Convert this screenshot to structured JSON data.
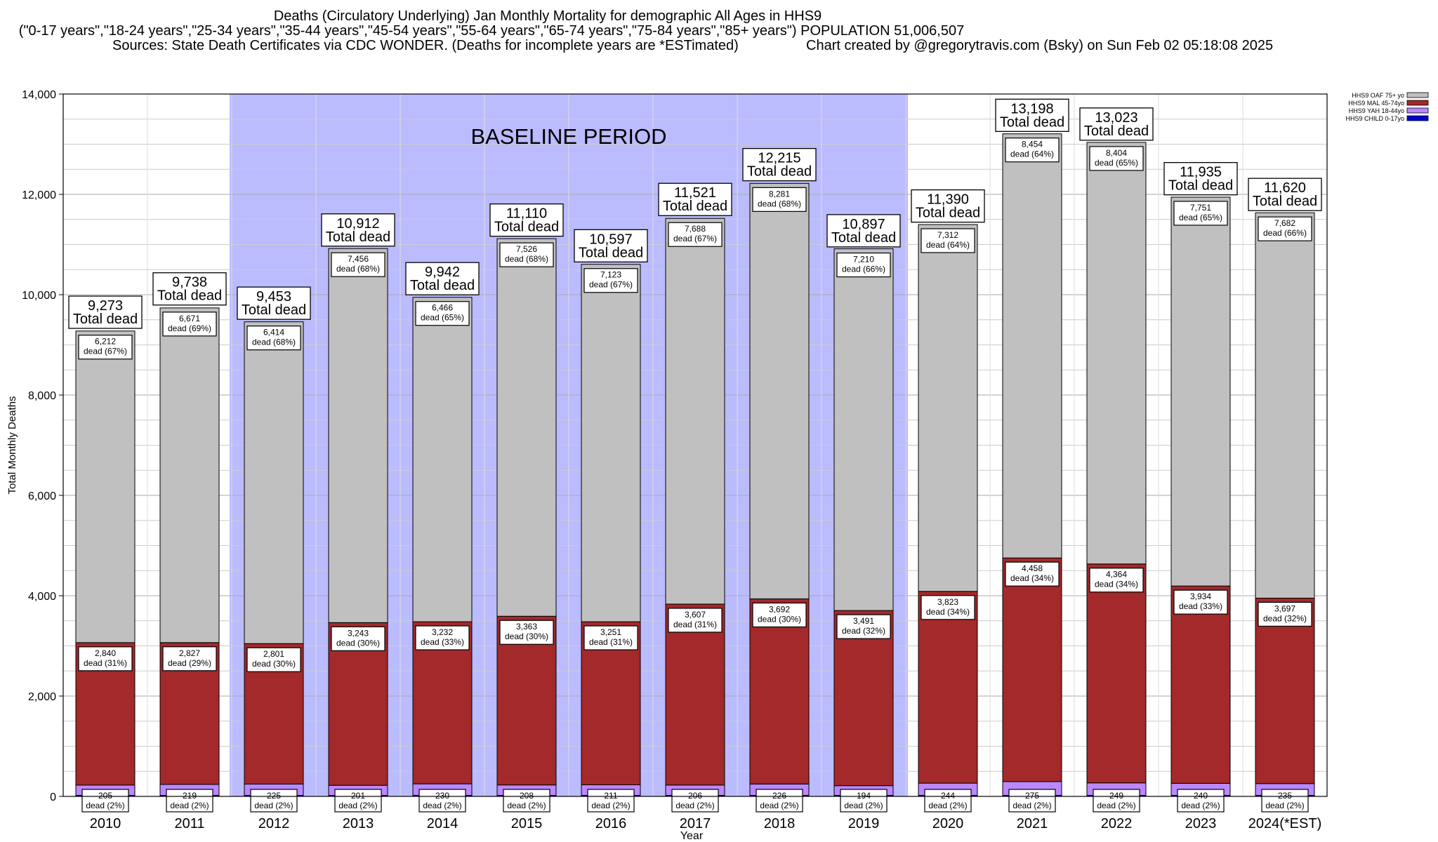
{
  "header": {
    "title_line1": "Deaths (Circulatory Underlying) Jan Monthly Mortality for demographic All Ages in HHS9",
    "title_line2": "(\"0-17 years\",\"18-24 years\",\"25-34 years\",\"35-44 years\",\"45-54 years\",\"55-64 years\",\"65-74 years\",\"75-84 years\",\"85+ years\") POPULATION 51,006,507",
    "sources": "Sources: State Death Certificates via CDC WONDER. (Deaths for incomplete years are *ESTimated)",
    "credit": "Chart created by @gregorytravis.com (Bsky) on Sun Feb 02 05:18:08 2025"
  },
  "colors": {
    "oaf": "#c0c0c0",
    "mal": "#a3292b",
    "yah": "#bb88ff",
    "child": "#0000cc",
    "baseline": "#bbbbff",
    "grid": "#cccccc"
  },
  "chart_data": {
    "type": "bar",
    "stacked": true,
    "xlabel": "Year",
    "ylabel": "Total Monthly Deaths",
    "ylim": [
      0,
      14000
    ],
    "yticks": [
      0,
      2000,
      4000,
      6000,
      8000,
      10000,
      12000,
      14000
    ],
    "ytick_labels": [
      "0",
      "2,000",
      "4,000",
      "6,000",
      "8,000",
      "10,000",
      "12,000",
      "14,000"
    ],
    "categories": [
      "2010",
      "2011",
      "2012",
      "2013",
      "2014",
      "2015",
      "2016",
      "2017",
      "2018",
      "2019",
      "2020",
      "2021",
      "2022",
      "2023",
      "2024(*EST)"
    ],
    "baseline_label": "BASELINE PERIOD",
    "baseline_range": [
      "2012",
      "2019"
    ],
    "total_label_suffix": "Total dead",
    "segment_label_word": "dead",
    "totals": [
      9273,
      9738,
      9453,
      10912,
      9942,
      11110,
      10597,
      11521,
      12215,
      10897,
      11390,
      13198,
      13023,
      11935,
      11620
    ],
    "totals_display": [
      "9,273",
      "9,738",
      "9,453",
      "10,912",
      "9,942",
      "11,110",
      "10,597",
      "11,521",
      "12,215",
      "10,897",
      "11,390",
      "13,198",
      "13,023",
      "11,935",
      "11,620"
    ],
    "series": [
      {
        "name": "HHS9 CHILD 0-17yo",
        "key": "child",
        "values": [
          20,
          20,
          20,
          20,
          20,
          20,
          20,
          20,
          20,
          20,
          20,
          20,
          20,
          20,
          20
        ]
      },
      {
        "name": "HHS9 YAH 18-44yo",
        "key": "yah",
        "values": [
          205,
          219,
          225,
          201,
          230,
          208,
          211,
          206,
          226,
          194,
          244,
          275,
          249,
          240,
          235
        ],
        "labels": [
          "205",
          "219",
          "225",
          "201",
          "230",
          "208",
          "211",
          "206",
          "226",
          "194",
          "244",
          "275",
          "249",
          "240",
          "235"
        ],
        "percents": [
          "(2%)",
          "(2%)",
          "(2%)",
          "(2%)",
          "(2%)",
          "(2%)",
          "(2%)",
          "(2%)",
          "(2%)",
          "(2%)",
          "(2%)",
          "(2%)",
          "(2%)",
          "(2%)",
          "(2%)"
        ]
      },
      {
        "name": "HHS9 MAL 45-74yo",
        "key": "mal",
        "values": [
          2840,
          2827,
          2801,
          3243,
          3232,
          3363,
          3251,
          3607,
          3692,
          3491,
          3823,
          4458,
          4364,
          3934,
          3697
        ],
        "labels": [
          "2,840",
          "2,827",
          "2,801",
          "3,243",
          "3,232",
          "3,363",
          "3,251",
          "3,607",
          "3,692",
          "3,491",
          "3,823",
          "4,458",
          "4,364",
          "3,934",
          "3,697"
        ],
        "percents": [
          "(31%)",
          "(29%)",
          "(30%)",
          "(30%)",
          "(33%)",
          "(30%)",
          "(31%)",
          "(31%)",
          "(30%)",
          "(32%)",
          "(34%)",
          "(34%)",
          "(34%)",
          "(33%)",
          "(32%)"
        ]
      },
      {
        "name": "HHS9 OAF 75+ yo",
        "key": "oaf",
        "values": [
          6212,
          6671,
          6414,
          7456,
          6466,
          7526,
          7123,
          7688,
          8281,
          7210,
          7312,
          8454,
          8404,
          7751,
          7682
        ],
        "labels": [
          "6,212",
          "6,671",
          "6,414",
          "7,456",
          "6,466",
          "7,526",
          "7,123",
          "7,688",
          "8,281",
          "7,210",
          "7,312",
          "8,454",
          "8,404",
          "7,751",
          "7,682"
        ],
        "percents": [
          "(67%)",
          "(69%)",
          "(68%)",
          "(68%)",
          "(65%)",
          "(68%)",
          "(67%)",
          "(67%)",
          "(68%)",
          "(66%)",
          "(64%)",
          "(64%)",
          "(65%)",
          "(65%)",
          "(66%)"
        ]
      }
    ],
    "legend": {
      "position": "top-right",
      "entries": [
        "HHS9 OAF 75+ yo",
        "HHS9 MAL 45-74yo",
        "HHS9 YAH 18-44yo",
        "HHS9 CHILD 0-17yo"
      ],
      "keys": [
        "oaf",
        "mal",
        "yah",
        "child"
      ]
    }
  }
}
